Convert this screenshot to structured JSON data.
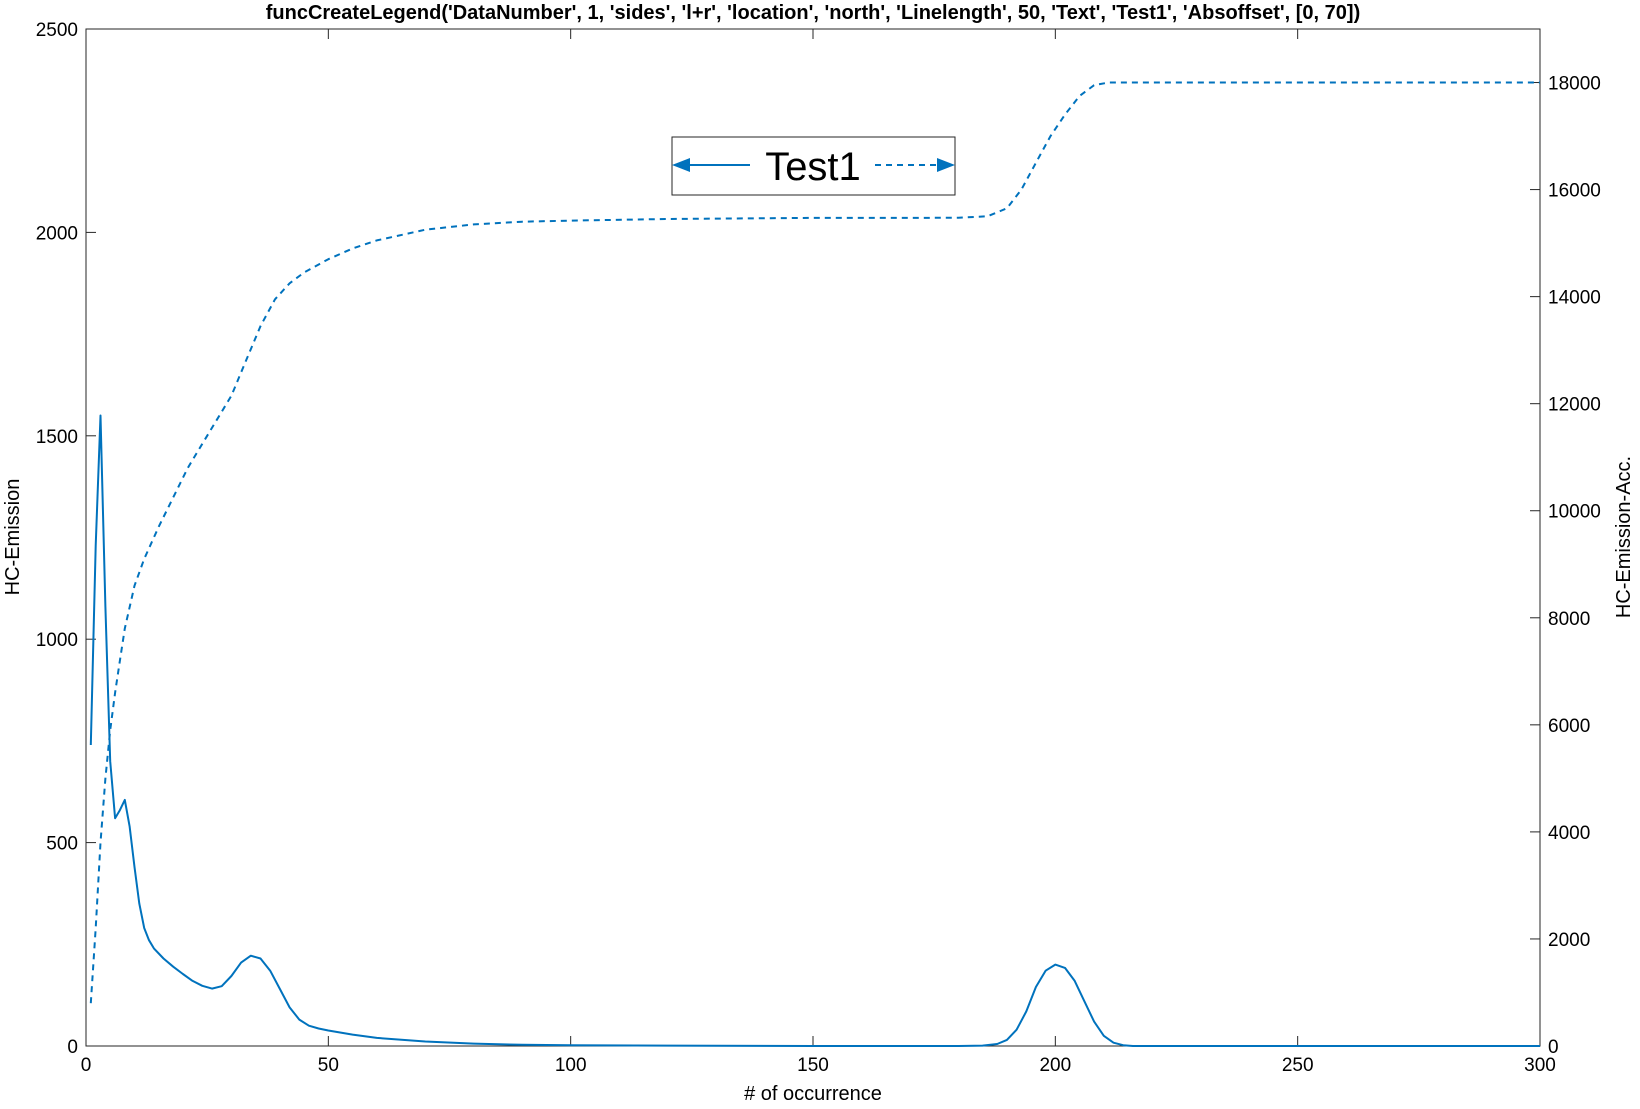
{
  "chart_data": {
    "type": "line",
    "title": "funcCreateLegend('DataNumber', 1, 'sides', 'l+r', 'location', 'north', 'Linelength', 50, 'Text', 'Test1', 'Absoffset', [0, 70])",
    "xlabel": "# of occurrence",
    "ylabel_left": "HC-Emission",
    "ylabel_right": "HC-Emission-Acc.",
    "xlim": [
      0,
      300
    ],
    "ylim_left": [
      0,
      2500
    ],
    "ylim_right": [
      0,
      19000
    ],
    "x_ticks": [
      0,
      50,
      100,
      150,
      200,
      250,
      300
    ],
    "y_left_ticks": [
      0,
      500,
      1000,
      1500,
      2000,
      2500
    ],
    "y_right_ticks": [
      0,
      2000,
      4000,
      6000,
      8000,
      10000,
      12000,
      14000,
      16000,
      18000
    ],
    "grid": false,
    "legend": {
      "placement": "north",
      "entries": [
        "Test1"
      ],
      "left_style": "solid arrow",
      "right_style": "dashed arrow"
    },
    "color": "#0072BD",
    "series": [
      {
        "axis": "left",
        "style": "solid",
        "x": [
          1,
          2,
          3,
          4,
          5,
          6,
          7,
          8,
          9,
          10,
          11,
          12,
          13,
          14,
          16,
          18,
          20,
          22,
          24,
          26,
          28,
          30,
          32,
          34,
          36,
          38,
          40,
          42,
          44,
          46,
          48,
          50,
          55,
          60,
          70,
          80,
          90,
          100,
          120,
          150,
          180,
          185,
          188,
          190,
          192,
          194,
          196,
          198,
          200,
          202,
          204,
          206,
          208,
          210,
          212,
          214,
          216,
          220,
          250,
          300
        ],
        "y": [
          740,
          1230,
          1550,
          1080,
          700,
          560,
          580,
          605,
          540,
          440,
          350,
          290,
          260,
          240,
          215,
          195,
          177,
          160,
          148,
          141,
          147,
          172,
          205,
          222,
          215,
          185,
          140,
          95,
          65,
          50,
          43,
          38,
          28,
          20,
          11,
          6,
          3,
          2,
          1,
          0,
          0,
          1,
          5,
          15,
          40,
          85,
          145,
          185,
          200,
          192,
          160,
          110,
          60,
          25,
          8,
          2,
          0,
          0,
          0,
          0
        ]
      },
      {
        "axis": "right",
        "style": "dashed",
        "x": [
          1,
          2,
          3,
          4,
          5,
          6,
          7,
          8,
          10,
          12,
          15,
          18,
          21,
          24,
          27,
          30,
          33,
          36,
          39,
          42,
          45,
          50,
          55,
          60,
          70,
          80,
          90,
          100,
          120,
          150,
          170,
          180,
          186,
          190,
          193,
          196,
          199,
          202,
          205,
          208,
          211,
          215,
          250,
          300
        ],
        "y": [
          800,
          2200,
          3800,
          5000,
          5900,
          6600,
          7200,
          7800,
          8600,
          9100,
          9700,
          10250,
          10800,
          11250,
          11700,
          12150,
          12800,
          13450,
          13950,
          14250,
          14450,
          14700,
          14900,
          15050,
          15250,
          15350,
          15400,
          15420,
          15450,
          15470,
          15470,
          15475,
          15500,
          15650,
          16000,
          16500,
          17000,
          17400,
          17750,
          17950,
          18000,
          18000,
          18000,
          18000
        ]
      }
    ]
  }
}
